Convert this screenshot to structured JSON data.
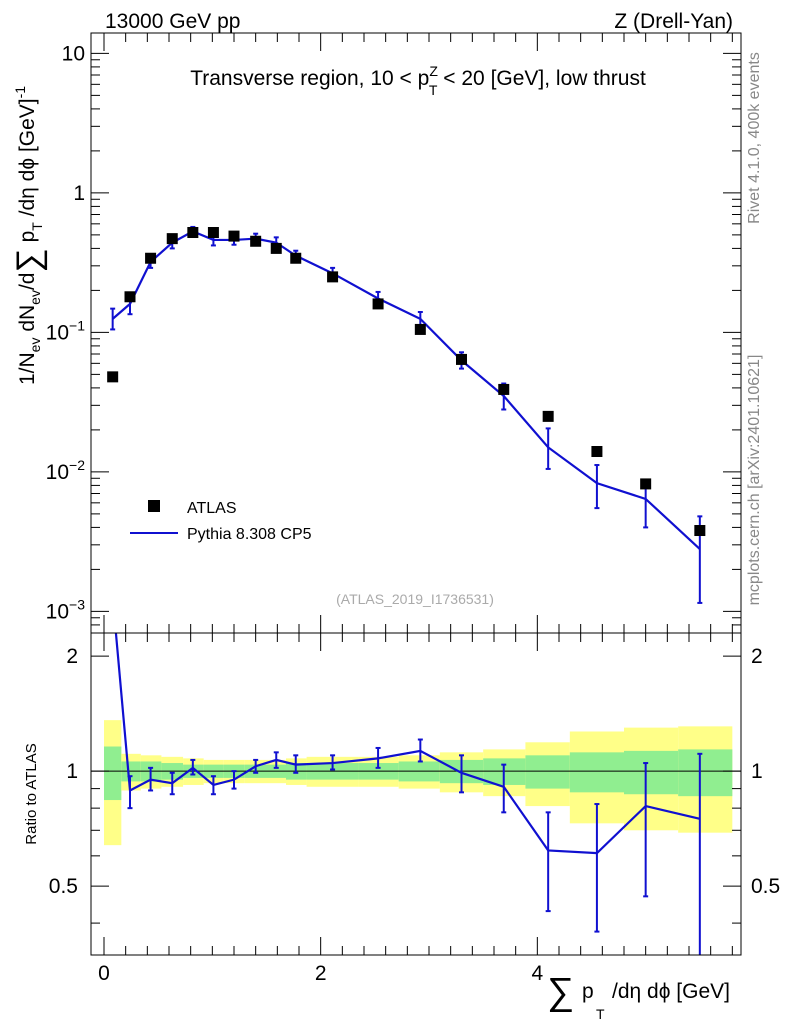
{
  "header": {
    "left": "13000 GeV pp",
    "right": "Z (Drell-Yan)"
  },
  "side_labels": {
    "rivet": "Rivet 4.1.0,  400k events",
    "mcplots": "mcplots.cern.ch [arXiv:2401.10621]"
  },
  "colors": {
    "mc_line": "#1010d0",
    "data_marker": "#000000",
    "band_inner": "#90ee90",
    "band_outer": "#ffff88"
  },
  "chart_data": {
    "type": "scatter",
    "title": "Transverse region, 10 < p_T^Z < 20 [GeV], low thrust",
    "watermark": "(ATLAS_2019_I1736531)",
    "xlabel": "∑ p_T /dη dϕ [GeV]",
    "ylabel": "1/N_ev dN_ev/d∑ p_T /dη dϕ  [GeV]^-1",
    "ratio_ylabel": "Ratio to ATLAS",
    "xlim": [
      -0.12,
      5.88
    ],
    "ylim": [
      0.0007,
      14
    ],
    "ratio_ylim": [
      0.33,
      2.3
    ],
    "x_ticks": [
      "0",
      "2",
      "4"
    ],
    "y_ticks": [
      "10^-3",
      "10^-2",
      "10^-1",
      "1",
      "10"
    ],
    "ratio_y_ticks": [
      "0.5",
      "1",
      "2"
    ],
    "legend": {
      "position": "bottom-left",
      "entries": [
        "ATLAS",
        "Pythia 8.308 CP5"
      ]
    },
    "x": [
      0.08,
      0.24,
      0.43,
      0.63,
      0.82,
      1.01,
      1.2,
      1.4,
      1.59,
      1.77,
      2.11,
      2.53,
      2.92,
      3.3,
      3.69,
      4.1,
      4.55,
      5.0,
      5.5
    ],
    "series": [
      {
        "name": "ATLAS",
        "values": [
          0.048,
          0.18,
          0.34,
          0.47,
          0.52,
          0.52,
          0.49,
          0.45,
          0.4,
          0.34,
          0.25,
          0.16,
          0.105,
          0.064,
          0.039,
          0.025,
          0.014,
          0.0082,
          0.0038
        ]
      },
      {
        "name": "Pythia 8.308 CP5",
        "values": [
          0.125,
          0.16,
          0.32,
          0.44,
          0.53,
          0.46,
          0.46,
          0.47,
          0.44,
          0.355,
          0.265,
          0.175,
          0.125,
          0.063,
          0.035,
          0.015,
          0.0083,
          0.0064,
          0.0028
        ],
        "err_low": [
          0.105,
          0.135,
          0.29,
          0.4,
          0.49,
          0.42,
          0.425,
          0.435,
          0.405,
          0.33,
          0.245,
          0.16,
          0.112,
          0.055,
          0.028,
          0.0105,
          0.0055,
          0.004,
          0.00115
        ],
        "err_high": [
          0.148,
          0.19,
          0.355,
          0.485,
          0.57,
          0.505,
          0.5,
          0.51,
          0.48,
          0.385,
          0.29,
          0.195,
          0.14,
          0.072,
          0.043,
          0.0205,
          0.0112,
          0.0087,
          0.0048
        ]
      }
    ],
    "ratio": {
      "x": [
        0.11,
        0.24,
        0.43,
        0.63,
        0.82,
        1.01,
        1.2,
        1.4,
        1.59,
        1.77,
        2.11,
        2.53,
        2.92,
        3.3,
        3.69,
        4.1,
        4.55,
        5.0,
        5.5
      ],
      "values": [
        2.3,
        0.89,
        0.95,
        0.93,
        1.02,
        0.92,
        0.95,
        1.03,
        1.07,
        1.04,
        1.05,
        1.08,
        1.13,
        0.99,
        0.91,
        0.62,
        0.61,
        0.81,
        0.75
      ],
      "err_low": [
        2.3,
        0.8,
        0.89,
        0.87,
        0.98,
        0.87,
        0.9,
        0.99,
        1.02,
        0.99,
        1.01,
        1.02,
        1.06,
        0.88,
        0.78,
        0.43,
        0.38,
        0.47,
        0.31
      ],
      "err_high": [
        2.3,
        0.97,
        1.02,
        0.99,
        1.07,
        0.97,
        1.0,
        1.07,
        1.12,
        1.1,
        1.1,
        1.15,
        1.21,
        1.1,
        1.04,
        0.78,
        0.82,
        1.05,
        1.11
      ]
    },
    "bands": {
      "edges": [
        0.0,
        0.16,
        0.34,
        0.53,
        0.73,
        0.92,
        1.1,
        1.3,
        1.5,
        1.68,
        1.87,
        2.35,
        2.72,
        3.1,
        3.5,
        3.89,
        4.3,
        4.8,
        5.3,
        5.8
      ],
      "inner_low": [
        0.84,
        0.94,
        0.94,
        0.95,
        0.96,
        0.96,
        0.96,
        0.96,
        0.96,
        0.95,
        0.95,
        0.95,
        0.94,
        0.93,
        0.92,
        0.9,
        0.88,
        0.87,
        0.86
      ],
      "inner_high": [
        1.16,
        1.06,
        1.06,
        1.05,
        1.04,
        1.04,
        1.04,
        1.04,
        1.04,
        1.05,
        1.05,
        1.05,
        1.06,
        1.07,
        1.08,
        1.1,
        1.12,
        1.13,
        1.14
      ],
      "outer_low": [
        0.64,
        0.89,
        0.9,
        0.91,
        0.92,
        0.93,
        0.93,
        0.93,
        0.93,
        0.92,
        0.91,
        0.91,
        0.9,
        0.88,
        0.86,
        0.81,
        0.73,
        0.7,
        0.69
      ],
      "outer_high": [
        1.36,
        1.11,
        1.1,
        1.09,
        1.08,
        1.07,
        1.07,
        1.07,
        1.07,
        1.08,
        1.09,
        1.09,
        1.1,
        1.12,
        1.14,
        1.19,
        1.27,
        1.3,
        1.31
      ]
    }
  }
}
